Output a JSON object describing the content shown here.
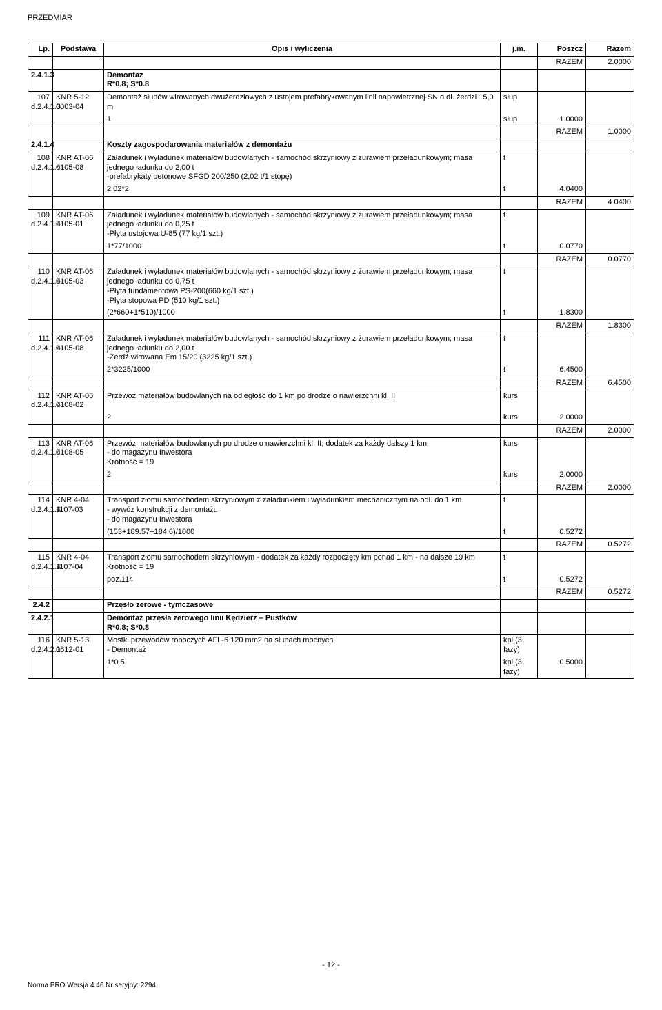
{
  "doc_title": "PRZEDMIAR",
  "page_number": "- 12 -",
  "footer_note": "Norma PRO Wersja 4.46 Nr seryjny: 2294",
  "table": {
    "headers": {
      "lp": "Lp.",
      "podstawa": "Podstawa",
      "opis": "Opis i wyliczenia",
      "jm": "j.m.",
      "poszcz": "Poszcz",
      "razem": "Razem"
    },
    "colors": {
      "border": "#000000",
      "text": "#000000",
      "bg": "#ffffff"
    }
  },
  "rows": {
    "r0_razem_label": "RAZEM",
    "r0_razem_val": "2.0000",
    "r1_lp": "2.4.1.3",
    "r1_opis": "Demontaż\nR*0.8;  S*0.8",
    "r2_lp": "107",
    "r2_lp2": "d.2.4.1.3",
    "r2_pod": "KNR 5-12 0003-04",
    "r2_opis": "Demontaż słupów wirowanych dwużerdziowych z ustojem prefabrykowanym linii napowietrznej SN o dł. żerdzi 15,0 m",
    "r2_jm": "słup",
    "r2_calc": "1",
    "r2_calc_jm": "słup",
    "r2_calc_val": "1.0000",
    "r2_razem_label": "RAZEM",
    "r2_razem_val": "1.0000",
    "r3_lp": "2.4.1.4",
    "r3_opis": "Koszty zagospodarowania materiałów z demontażu",
    "r4_lp": "108",
    "r4_lp2": "d.2.4.1.4",
    "r4_pod": "KNR AT-06 0105-08",
    "r4_opis": "Załadunek i wyładunek materiałów budowlanych - samochód skrzyniowy z żurawiem przeładunkowym; masa jednego ładunku do 2,00 t\n-prefabrykaty betonowe SFGD 200/250 (2,02 t/1 stopę)",
    "r4_jm": "t",
    "r4_calc": "2.02*2",
    "r4_calc_jm": "t",
    "r4_calc_val": "4.0400",
    "r4_razem_label": "RAZEM",
    "r4_razem_val": "4.0400",
    "r5_lp": "109",
    "r5_lp2": "d.2.4.1.4",
    "r5_pod": "KNR AT-06 0105-01",
    "r5_opis": "Załadunek i wyładunek materiałów budowlanych - samochód skrzyniowy z żurawiem przeładunkowym; masa jednego ładunku do 0,25 t\n-Płyta ustojowa U-85 (77 kg/1 szt.)",
    "r5_jm": "t",
    "r5_calc": "1*77/1000",
    "r5_calc_jm": "t",
    "r5_calc_val": "0.0770",
    "r5_razem_label": "RAZEM",
    "r5_razem_val": "0.0770",
    "r6_lp": "110",
    "r6_lp2": "d.2.4.1.4",
    "r6_pod": "KNR AT-06 0105-03",
    "r6_opis": "Załadunek i wyładunek materiałów budowlanych - samochód skrzyniowy z żurawiem przeładunkowym; masa jednego ładunku do 0,75 t\n-Płyta fundamentowa PS-200(660 kg/1 szt.)\n-Płyta stopowa PD (510 kg/1 szt.)",
    "r6_jm": "t",
    "r6_calc": "(2*660+1*510)/1000",
    "r6_calc_jm": "t",
    "r6_calc_val": "1.8300",
    "r6_razem_label": "RAZEM",
    "r6_razem_val": "1.8300",
    "r7_lp": "111",
    "r7_lp2": "d.2.4.1.4",
    "r7_pod": "KNR AT-06 0105-08",
    "r7_opis": "Załadunek i wyładunek materiałów budowlanych - samochód skrzyniowy z żurawiem przeładunkowym; masa jednego ładunku do 2,00 t\n-Żerdź wirowana Em 15/20 (3225 kg/1 szt.)",
    "r7_jm": "t",
    "r7_calc": "2*3225/1000",
    "r7_calc_jm": "t",
    "r7_calc_val": "6.4500",
    "r7_razem_label": "RAZEM",
    "r7_razem_val": "6.4500",
    "r8_lp": "112",
    "r8_lp2": "d.2.4.1.4",
    "r8_pod": "KNR AT-06 0108-02",
    "r8_opis": "Przewóz materiałów budowlanych na odległość do 1 km po drodze o nawierzchni kl. II",
    "r8_jm": "kurs",
    "r8_calc": "2",
    "r8_calc_jm": "kurs",
    "r8_calc_val": "2.0000",
    "r8_razem_label": "RAZEM",
    "r8_razem_val": "2.0000",
    "r9_lp": "113",
    "r9_lp2": "d.2.4.1.4",
    "r9_pod": "KNR AT-06 0108-05",
    "r9_opis": "Przewóz materiałów budowlanych po drodze o nawierzchni kl. II; dodatek za każdy dalszy 1 km\n- do magazynu Inwestora\nKrotność = 19",
    "r9_jm": "kurs",
    "r9_calc": "2",
    "r9_calc_jm": "kurs",
    "r9_calc_val": "2.0000",
    "r9_razem_label": "RAZEM",
    "r9_razem_val": "2.0000",
    "r10_lp": "114",
    "r10_lp2": "d.2.4.1.4",
    "r10_pod": "KNR 4-04 1107-03",
    "r10_opis": "Transport złomu samochodem skrzyniowym z załadunkiem i wyładunkiem mechanicznym na odl. do 1 km\n- wywóz konstrukcji z demontażu\n - do magazynu Inwestora",
    "r10_jm": "t",
    "r10_calc": "(153+189.57+184.6)/1000",
    "r10_calc_jm": "t",
    "r10_calc_val": "0.5272",
    "r10_razem_label": "RAZEM",
    "r10_razem_val": "0.5272",
    "r11_lp": "115",
    "r11_lp2": "d.2.4.1.4",
    "r11_pod": "KNR 4-04 1107-04",
    "r11_opis": "Transport złomu samochodem skrzyniowym - dodatek za każdy rozpoczęty km ponad 1 km - na dalsze 19 km\nKrotność = 19",
    "r11_jm": "t",
    "r11_calc": "poz.114",
    "r11_calc_jm": "t",
    "r11_calc_val": "0.5272",
    "r11_razem_label": "RAZEM",
    "r11_razem_val": "0.5272",
    "r12_lp": "2.4.2",
    "r12_opis": "Przęsło zerowe  - tymczasowe",
    "r13_lp": "2.4.2.1",
    "r13_opis": "Demontaż przęsła zerowego linii Kędzierz – Pustków\nR*0.8;  S*0.8",
    "r14_lp": "116",
    "r14_lp2": "d.2.4.2.1",
    "r14_pod": "KNR 5-13 0612-01",
    "r14_opis": "Mostki przewodów roboczych AFL-6 120 mm2 na słupach mocnych\n- Demontaż",
    "r14_jm": "kpl.(3 fazy)",
    "r14_calc": "1*0.5",
    "r14_calc_jm": "kpl.(3 fazy)",
    "r14_calc_val": "0.5000"
  }
}
